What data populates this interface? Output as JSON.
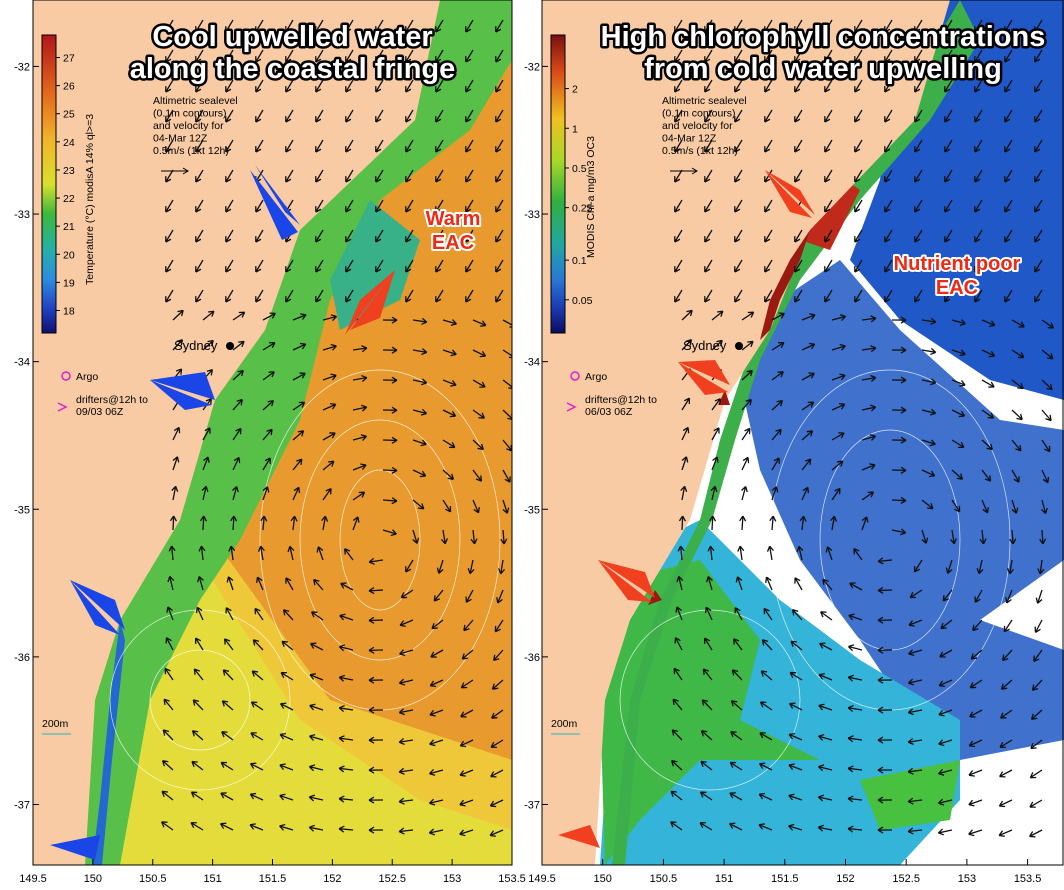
{
  "panels": [
    {
      "title": [
        "Cool upwelled water",
        "along the coastal fringe"
      ],
      "callout": [
        "Warm",
        "EAC"
      ],
      "colorbar": {
        "label": "Temperature (°C) modisA 14% ql>=3",
        "ticks": [
          27,
          26,
          25,
          24,
          23,
          22,
          21,
          20,
          19,
          18
        ],
        "lim": [
          17.2,
          27.8
        ],
        "log": false
      },
      "legend": {
        "sealevel": [
          "Altimetric sealevel",
          "(0.1m contours)",
          "and velocity for",
          "04-Mar 12Z",
          "0.5m/s (1kt 12h)"
        ],
        "city": "Sydney",
        "argo": "Argo",
        "drifters": [
          "drifters@12h to",
          "09/03 06Z"
        ],
        "depth": "200m"
      },
      "lat_ticks": [
        -32,
        -33,
        -34,
        -35,
        -36,
        -37
      ],
      "lat_lim": [
        -37.41,
        -31.55
      ],
      "lon_ticks": [
        149.5,
        150,
        150.5,
        151,
        151.5,
        152,
        152.5,
        153,
        153.5
      ],
      "lon_lim": [
        149.5,
        153.5
      ]
    },
    {
      "title": [
        "High chlorophyll concentrations",
        "from cold water upwelling"
      ],
      "callout": [
        "Nutrient poor",
        "EAC"
      ],
      "colorbar": {
        "label": "MODIS Chl-a mg/m3 OC3",
        "ticks": [
          2,
          1,
          0.5,
          0.25,
          0.1,
          0.05
        ],
        "lim": [
          0.028,
          5.1
        ],
        "log": true
      },
      "legend": {
        "sealevel": [
          "Altimetric sealevel",
          "(0.1m contours)",
          "and velocity for",
          "04-Mar 12Z",
          "0.5m/s (1kt 12h)"
        ],
        "city": "Sydney",
        "argo": "Argo",
        "drifters": [
          "drifters@12h to",
          "06/03 06Z"
        ],
        "depth": "200m"
      },
      "lat_ticks": [
        -32,
        -33,
        -34,
        -35,
        -36,
        -37
      ],
      "lat_lim": [
        -37.41,
        -31.55
      ],
      "lon_ticks": [
        149.5,
        150,
        150.5,
        151,
        151.5,
        152,
        152.5,
        153,
        153.5
      ],
      "lon_lim": [
        149.5,
        153.8
      ]
    }
  ]
}
